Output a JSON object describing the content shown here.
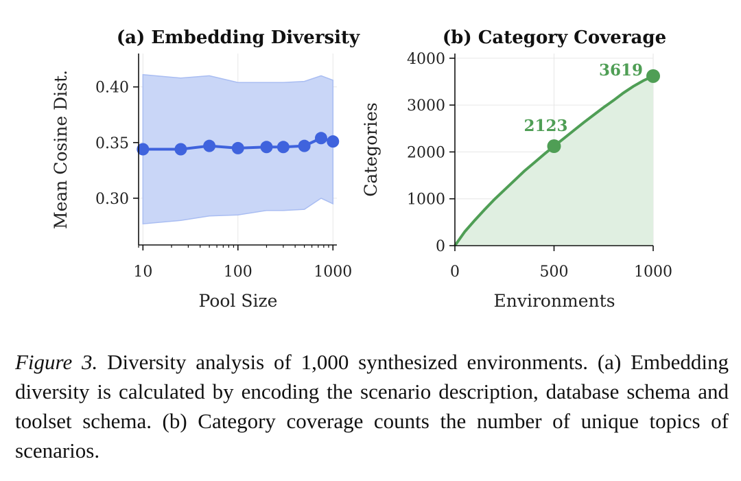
{
  "chart_data": [
    {
      "type": "line",
      "panel": "a",
      "title": "(a) Embedding Diversity",
      "xlabel": "Pool Size",
      "ylabel": "Mean Cosine Dist.",
      "xscale": "log",
      "xlim": [
        9,
        1100
      ],
      "ylim": [
        0.258,
        0.43
      ],
      "xticks": [
        10,
        100,
        1000
      ],
      "xtick_labels": [
        "10",
        "100",
        "1000"
      ],
      "yticks": [
        0.3,
        0.35,
        0.4
      ],
      "ytick_labels": [
        "0.30",
        "0.35",
        "0.40"
      ],
      "grid": true,
      "color": "#3f63dd",
      "band_color": "#c9d6f7",
      "series": [
        {
          "name": "mean",
          "x": [
            10,
            25,
            50,
            100,
            200,
            300,
            500,
            750,
            1000
          ],
          "y": [
            0.344,
            0.344,
            0.347,
            0.345,
            0.346,
            0.346,
            0.347,
            0.354,
            0.351
          ],
          "lower": [
            0.277,
            0.28,
            0.284,
            0.285,
            0.289,
            0.289,
            0.29,
            0.3,
            0.295
          ],
          "upper": [
            0.411,
            0.408,
            0.41,
            0.404,
            0.404,
            0.404,
            0.405,
            0.41,
            0.406
          ]
        }
      ]
    },
    {
      "type": "area",
      "panel": "b",
      "title": "(b) Category Coverage",
      "xlabel": "Environments",
      "ylabel": "Categories",
      "xlim": [
        0,
        1000
      ],
      "ylim": [
        0,
        4100
      ],
      "xticks": [
        0,
        500,
        1000
      ],
      "xtick_labels": [
        "0",
        "500",
        "1000"
      ],
      "yticks": [
        0,
        1000,
        2000,
        3000,
        4000
      ],
      "ytick_labels": [
        "0",
        "1000",
        "2000",
        "3000",
        "4000"
      ],
      "grid": true,
      "color": "#4f9e55",
      "fill_color": "#e0efe1",
      "series": [
        {
          "name": "coverage",
          "x": [
            0,
            50,
            100,
            150,
            200,
            250,
            300,
            350,
            400,
            450,
            500,
            550,
            600,
            650,
            700,
            750,
            800,
            850,
            900,
            950,
            1000
          ],
          "y": [
            0,
            300,
            540,
            770,
            990,
            1190,
            1390,
            1590,
            1770,
            1950,
            2123,
            2290,
            2460,
            2630,
            2790,
            2950,
            3100,
            3260,
            3400,
            3520,
            3619
          ]
        }
      ],
      "highlights": [
        {
          "x": 500,
          "y": 2123,
          "label": "2123"
        },
        {
          "x": 1000,
          "y": 3619,
          "label": "3619"
        }
      ]
    }
  ],
  "caption": {
    "figure_number": "Figure 3.",
    "text": "Diversity analysis of 1,000 synthesized environments. (a) Embedding diversity is calculated by encoding the scenario description, database schema and toolset schema. (b) Category coverage counts the number of unique topics of scenarios."
  }
}
